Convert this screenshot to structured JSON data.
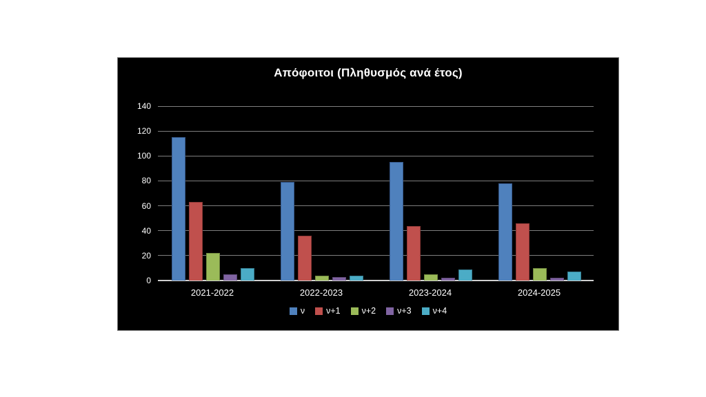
{
  "chart_data": {
    "type": "bar",
    "title": "Απόφοιτοι (Πληθυσμός ανά έτος)",
    "categories": [
      "2021-2022",
      "2022-2023",
      "2023-2024",
      "2024-2025"
    ],
    "series": [
      {
        "name": "ν",
        "color": "#4f81bd",
        "border": "#36598c",
        "values": [
          115,
          79,
          95,
          78
        ]
      },
      {
        "name": "ν+1",
        "color": "#c0504d",
        "border": "#8c3836",
        "values": [
          63,
          36,
          44,
          46
        ]
      },
      {
        "name": "ν+2",
        "color": "#9bbb59",
        "border": "#71893f",
        "values": [
          22,
          4,
          5,
          10
        ]
      },
      {
        "name": "ν+3",
        "color": "#8064a2",
        "border": "#5d4876",
        "values": [
          5,
          3,
          2,
          2
        ]
      },
      {
        "name": "ν+4",
        "color": "#4bacc6",
        "border": "#357d91",
        "values": [
          10,
          4,
          9,
          7
        ]
      }
    ],
    "ylim": [
      0,
      140
    ],
    "ytick_step": 20,
    "ytick_labels": [
      "0",
      "20",
      "40",
      "60",
      "80",
      "100",
      "120",
      "140"
    ],
    "grid": "horizontal",
    "legend_position": "bottom",
    "xlabel": "",
    "ylabel": ""
  },
  "colors": {
    "page_background": "#ffffff",
    "panel_background": "#000000",
    "panel_border": "#7a7a7a",
    "gridline": "#7f7f7f",
    "axis_line": "#d0d0d0",
    "text": "#ffffff"
  }
}
